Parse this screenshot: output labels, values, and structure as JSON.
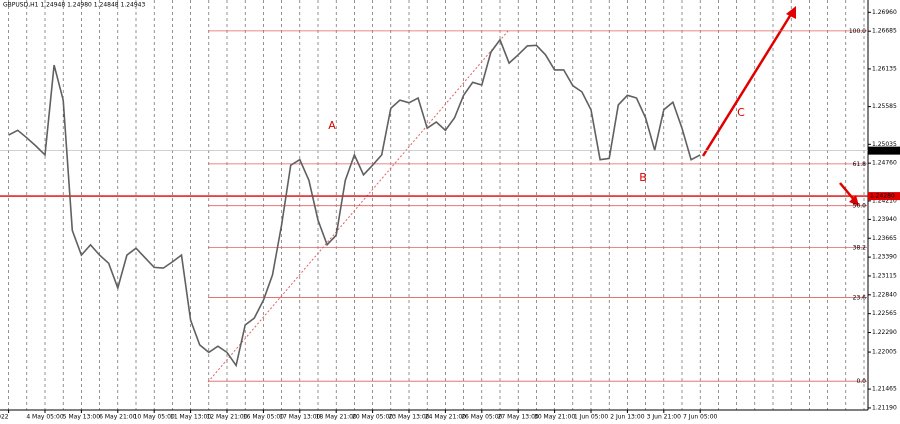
{
  "chart_data": {
    "type": "line",
    "title": "GBPUSD,H1  1.24948 1.24980 1.24848 1.24943",
    "categories": [
      "2 May 2022",
      null,
      null,
      null,
      "4 May 05:00",
      null,
      null,
      null,
      "5 May 13:00",
      null,
      null,
      null,
      "6 May 21:00",
      null,
      null,
      null,
      "10 May 05:00",
      null,
      null,
      null,
      "11 May 13:00",
      null,
      null,
      null,
      "12 May 21:00",
      null,
      null,
      null,
      "16 May 05:00",
      null,
      null,
      null,
      "17 May 13:00",
      null,
      null,
      null,
      "18 May 21:00",
      null,
      null,
      null,
      "20 May 05:00",
      null,
      null,
      null,
      "23 May 13:00",
      null,
      null,
      null,
      "24 May 21:00",
      null,
      null,
      null,
      "26 May 05:00",
      null,
      null,
      null,
      "27 May 13:00",
      null,
      null,
      null,
      "30 May 21:00",
      null,
      null,
      null,
      "1 Jun 05:00",
      null,
      null,
      null,
      "2 Jun 13:00",
      null,
      null,
      null,
      "3 Jun 21:00",
      null,
      null,
      null,
      "7 Jun 05:00"
    ],
    "series": [
      {
        "name": "GBPUSD",
        "color": "#606060",
        "values": [
          1.2517,
          1.2524,
          1.2513,
          1.2501,
          1.2488,
          1.2619,
          1.2568,
          1.2378,
          1.2342,
          1.2357,
          1.2342,
          1.233,
          1.2294,
          1.2342,
          1.2352,
          1.2338,
          1.2324,
          1.2323,
          1.2332,
          1.2342,
          1.2247,
          1.2211,
          1.22,
          1.2209,
          1.22,
          1.2181,
          1.224,
          1.225,
          1.2276,
          1.2313,
          1.2386,
          1.2473,
          1.2481,
          1.2451,
          1.2393,
          1.2357,
          1.2371,
          1.2451,
          1.2488,
          1.2459,
          1.2473,
          1.2488,
          1.2556,
          1.2568,
          1.2564,
          1.2571,
          1.2527,
          1.2536,
          1.2524,
          1.2542,
          1.2575,
          1.2594,
          1.259,
          1.2638,
          1.2656,
          1.2622,
          1.2634,
          1.2647,
          1.2648,
          1.2634,
          1.2612,
          1.2612,
          1.2589,
          1.258,
          1.2554,
          1.2481,
          1.2483,
          1.2561,
          1.2575,
          1.2571,
          1.2542,
          1.2495,
          1.2554,
          1.2565,
          1.2527,
          1.2481,
          1.2488
        ]
      }
    ],
    "ylim": [
      1.2116,
      1.2714
    ],
    "yticks": [
      {
        "value": 1.2696,
        "label": "1.26960"
      },
      1.26685,
      1.26135,
      1.25585,
      1.25035,
      {
        "value": 1.2476,
        "label": "1.24760"
      },
      {
        "value": 1.2421,
        "label": "1.24210"
      },
      {
        "value": 1.2394,
        "label": "1.23940"
      },
      1.23665,
      {
        "value": 1.2339,
        "label": "1.23390"
      },
      1.23115,
      {
        "value": 1.2284,
        "label": "1.22840"
      },
      1.22565,
      {
        "value": 1.2229,
        "label": "1.22290"
      },
      {
        "value": 1.22005,
        "label": "1.22005"
      },
      1.21465,
      {
        "value": 1.2119,
        "label": "1.21190"
      }
    ],
    "fib_levels": [
      {
        "value": 1.2669,
        "label": "100.0"
      },
      {
        "value": 1.2475,
        "label": "61.8"
      },
      {
        "value": 1.2414,
        "label": "50.0"
      },
      {
        "value": 1.2353,
        "label": "38.2"
      },
      {
        "value": 1.228,
        "label": "23.6"
      },
      {
        "value": 1.2158,
        "label": "0.0"
      }
    ],
    "level_line": {
      "value": 1.2428,
      "label": "1.24280",
      "color": "#e00000"
    },
    "bid_line": 1.24943,
    "annotations": [
      "A",
      "B",
      "C"
    ]
  }
}
